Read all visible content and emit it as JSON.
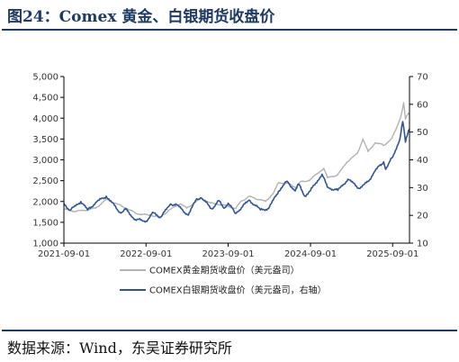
{
  "figure": {
    "title": "图24：Comex 黄金、白银期货收盘价",
    "source": "数据来源：Wind，东吴证券研究所"
  },
  "colors": {
    "gold": "#b3b3b3",
    "silver": "#2f5597",
    "axis": "#000000",
    "title": "#1f3a63"
  },
  "chart_data": {
    "type": "line",
    "title": "",
    "x_ticks": [
      "2021-09-01",
      "2022-09-01",
      "2023-09-01",
      "2024-09-01",
      "2025-09-01"
    ],
    "x_range": [
      "2021-09-01",
      "2025-11-15"
    ],
    "left_axis": {
      "min": 1000,
      "max": 5000,
      "step": 500,
      "tick_labels": [
        "1,000",
        "1,500",
        "2,000",
        "2,500",
        "3,000",
        "3,500",
        "4,000",
        "4,500",
        "5,000"
      ]
    },
    "right_axis": {
      "min": 10,
      "max": 70,
      "step": 10,
      "tick_labels": [
        "10",
        "20",
        "30",
        "40",
        "50",
        "60",
        "70"
      ]
    },
    "grid": false,
    "legend_position": "bottom",
    "series": [
      {
        "name": "COMEX黄金期货收盘价（美元盎司）",
        "axis": "left",
        "color": "#b3b3b3",
        "points": [
          [
            "2021-09-01",
            1815
          ],
          [
            "2021-10-15",
            1765
          ],
          [
            "2021-12-01",
            1785
          ],
          [
            "2022-01-20",
            1840
          ],
          [
            "2022-03-08",
            2050
          ],
          [
            "2022-04-20",
            1950
          ],
          [
            "2022-06-01",
            1850
          ],
          [
            "2022-07-20",
            1710
          ],
          [
            "2022-09-28",
            1660
          ],
          [
            "2022-11-03",
            1630
          ],
          [
            "2022-12-20",
            1820
          ],
          [
            "2023-02-01",
            1945
          ],
          [
            "2023-03-01",
            1840
          ],
          [
            "2023-05-04",
            2080
          ],
          [
            "2023-06-15",
            1960
          ],
          [
            "2023-08-15",
            1910
          ],
          [
            "2023-10-05",
            1830
          ],
          [
            "2023-10-27",
            2000
          ],
          [
            "2023-12-04",
            2120
          ],
          [
            "2024-01-15",
            2050
          ],
          [
            "2024-02-14",
            2000
          ],
          [
            "2024-03-20",
            2200
          ],
          [
            "2024-04-12",
            2450
          ],
          [
            "2024-05-20",
            2440
          ],
          [
            "2024-06-28",
            2340
          ],
          [
            "2024-07-17",
            2470
          ],
          [
            "2024-08-10",
            2480
          ],
          [
            "2024-09-01",
            2530
          ],
          [
            "2024-10-30",
            2800
          ],
          [
            "2024-11-15",
            2570
          ],
          [
            "2024-12-31",
            2640
          ],
          [
            "2025-02-10",
            2950
          ],
          [
            "2025-03-28",
            3150
          ],
          [
            "2025-04-22",
            3500
          ],
          [
            "2025-05-15",
            3200
          ],
          [
            "2025-06-15",
            3410
          ],
          [
            "2025-07-25",
            3350
          ],
          [
            "2025-08-29",
            3515
          ],
          [
            "2025-09-15",
            3720
          ],
          [
            "2025-10-08",
            4050
          ],
          [
            "2025-10-20",
            4370
          ],
          [
            "2025-10-28",
            3980
          ],
          [
            "2025-11-10",
            4120
          ],
          [
            "2025-11-15",
            4090
          ]
        ]
      },
      {
        "name": "COMEX白银期货收盘价（美元盎司，右轴）",
        "axis": "right",
        "color": "#2f5597",
        "points": [
          [
            "2021-09-01",
            24.3
          ],
          [
            "2021-09-29",
            21.8
          ],
          [
            "2021-11-15",
            25.0
          ],
          [
            "2021-12-15",
            22.0
          ],
          [
            "2022-01-20",
            24.6
          ],
          [
            "2022-03-08",
            26.9
          ],
          [
            "2022-05-12",
            20.8
          ],
          [
            "2022-06-01",
            22.2
          ],
          [
            "2022-07-15",
            18.5
          ],
          [
            "2022-09-01",
            17.9
          ],
          [
            "2022-10-04",
            21.0
          ],
          [
            "2022-11-03",
            19.2
          ],
          [
            "2022-12-20",
            24.1
          ],
          [
            "2023-01-15",
            23.8
          ],
          [
            "2023-03-08",
            20.1
          ],
          [
            "2023-04-14",
            26.0
          ],
          [
            "2023-05-04",
            26.3
          ],
          [
            "2023-06-22",
            22.3
          ],
          [
            "2023-07-20",
            25.3
          ],
          [
            "2023-08-14",
            22.6
          ],
          [
            "2023-09-01",
            24.4
          ],
          [
            "2023-10-03",
            20.7
          ],
          [
            "2023-12-04",
            25.5
          ],
          [
            "2024-01-22",
            22.0
          ],
          [
            "2024-02-28",
            22.5
          ],
          [
            "2024-04-12",
            28.7
          ],
          [
            "2024-05-20",
            32.3
          ],
          [
            "2024-06-25",
            28.8
          ],
          [
            "2024-07-10",
            31.3
          ],
          [
            "2024-08-07",
            26.9
          ],
          [
            "2024-09-01",
            28.9
          ],
          [
            "2024-10-22",
            34.8
          ],
          [
            "2024-11-15",
            30.1
          ],
          [
            "2024-12-31",
            29.0
          ],
          [
            "2025-02-14",
            33.0
          ],
          [
            "2025-04-09",
            29.7
          ],
          [
            "2025-05-15",
            32.2
          ],
          [
            "2025-06-15",
            36.0
          ],
          [
            "2025-07-23",
            39.3
          ],
          [
            "2025-08-01",
            36.6
          ],
          [
            "2025-09-01",
            41.0
          ],
          [
            "2025-10-03",
            47.5
          ],
          [
            "2025-10-16",
            53.8
          ],
          [
            "2025-10-28",
            46.4
          ],
          [
            "2025-11-10",
            50.5
          ],
          [
            "2025-11-15",
            51.2
          ]
        ]
      }
    ]
  }
}
